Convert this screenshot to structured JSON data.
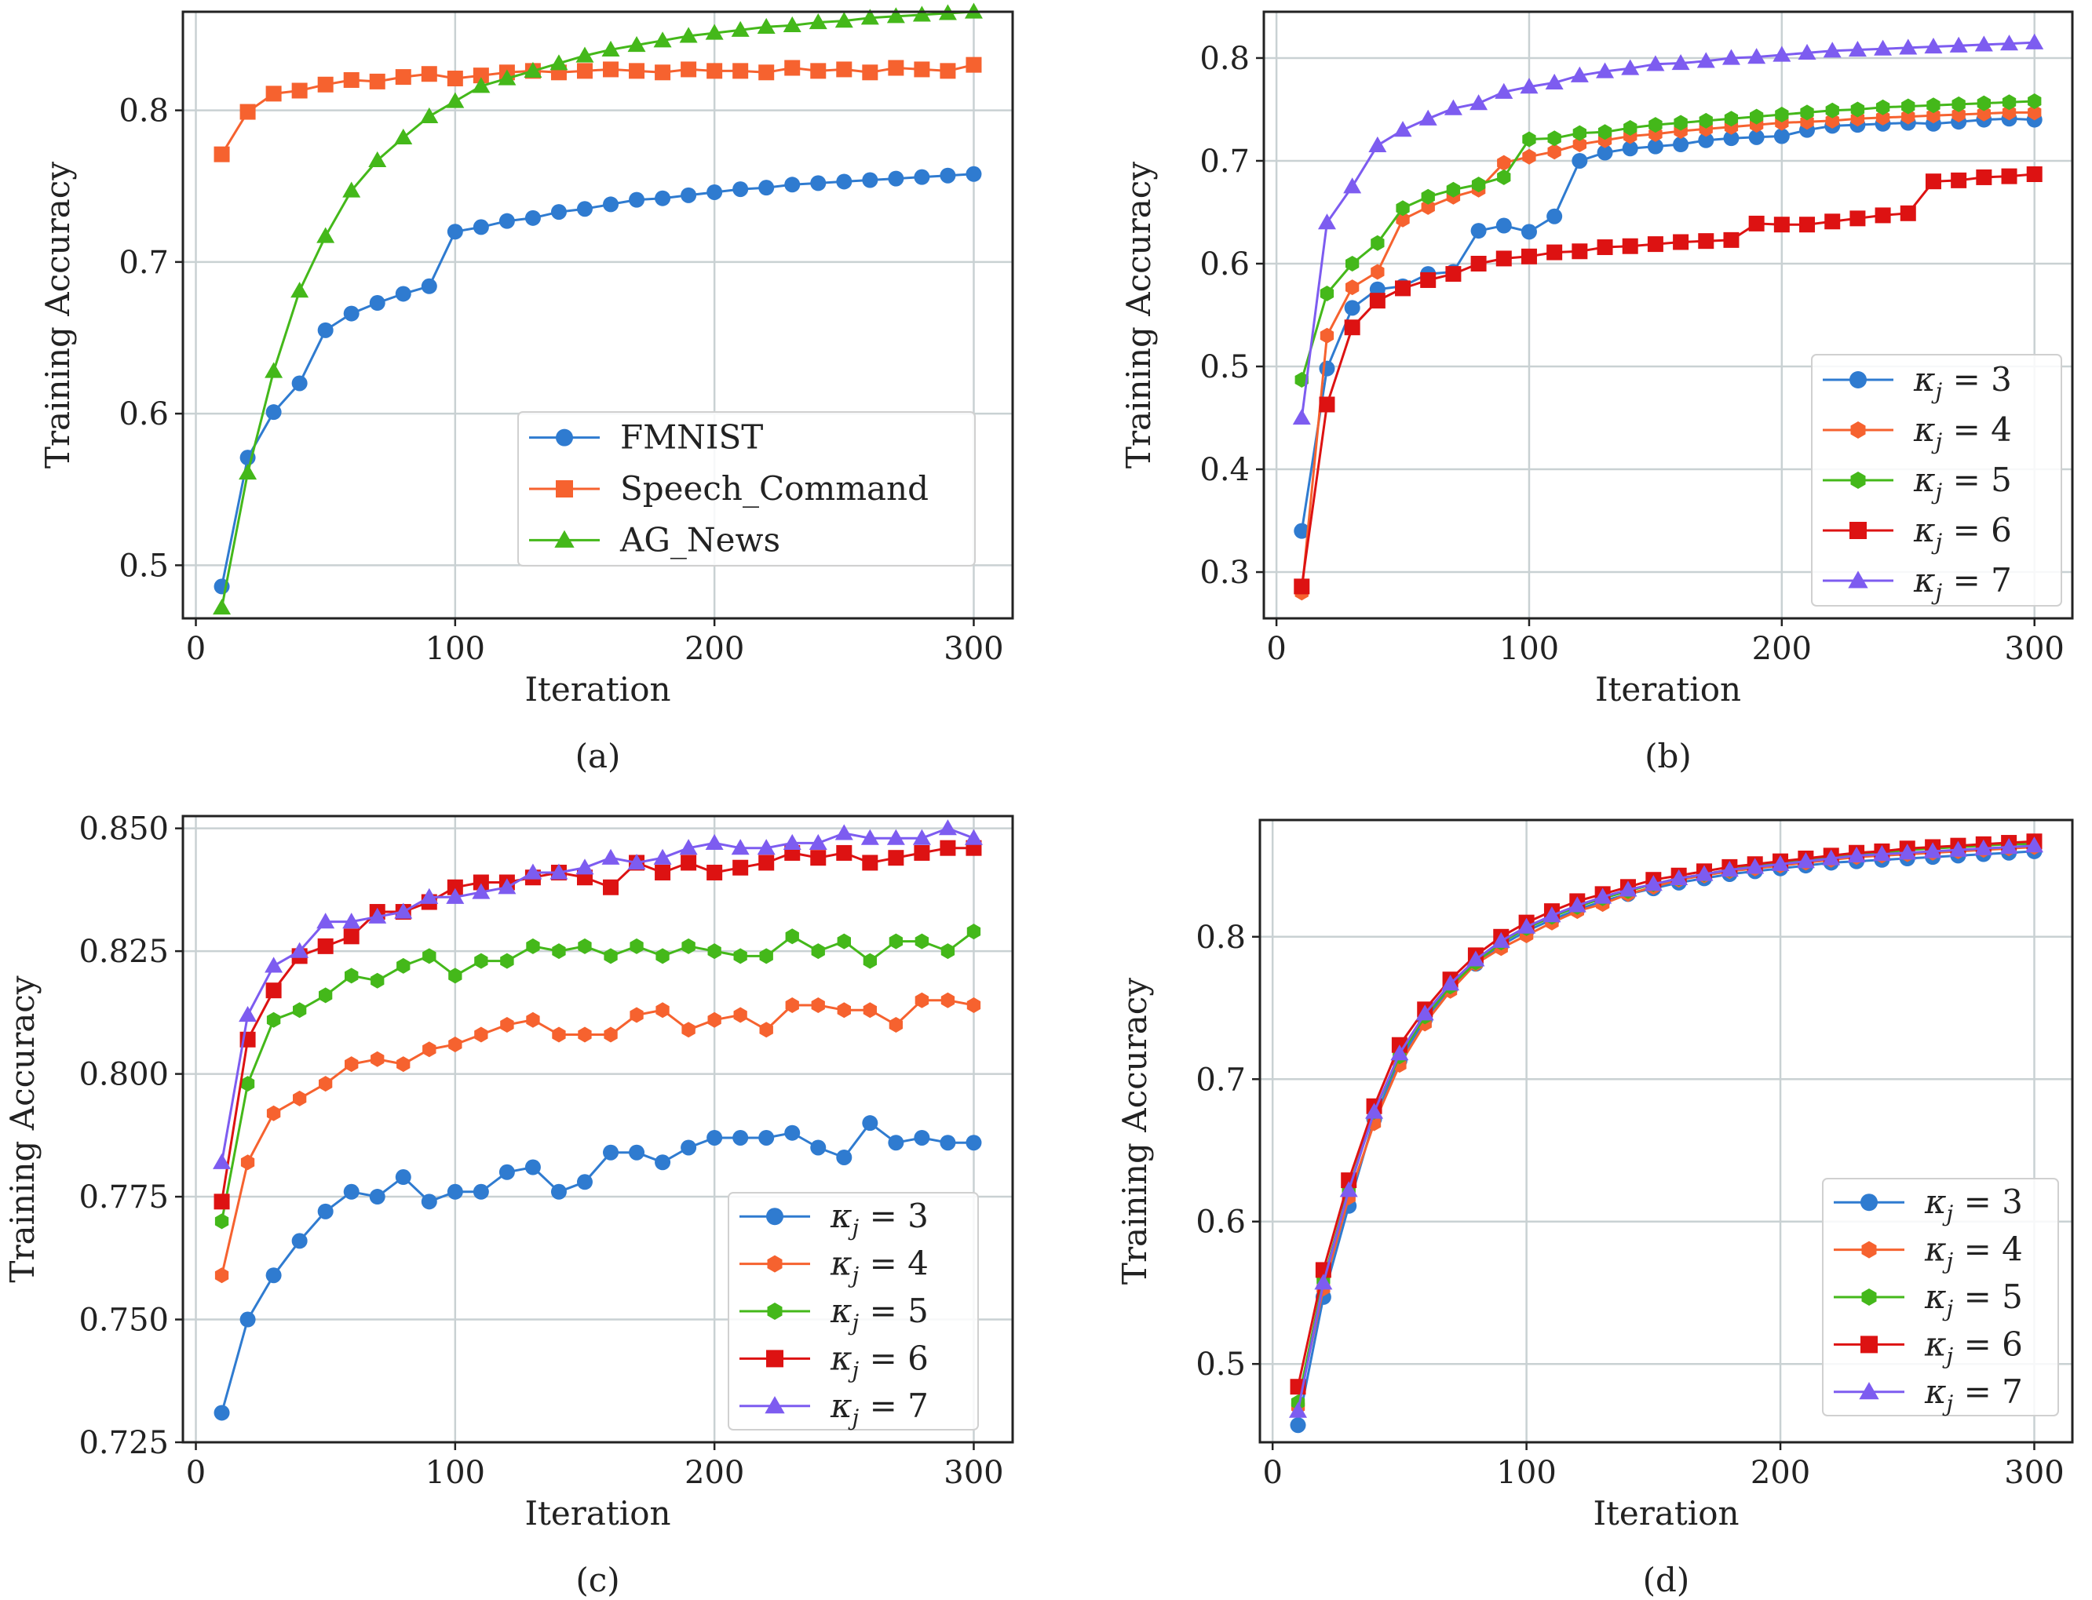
{
  "figure": {
    "colors": {
      "blue": "#2f7bd0",
      "orange": "#f6622f",
      "green": "#44b81a",
      "red": "#dd1212",
      "purple": "#7d5cf0"
    }
  },
  "chart_data": [
    {
      "id": "a",
      "type": "line",
      "caption": "(a)",
      "xlabel": "Iteration",
      "ylabel": "Training Accuracy",
      "xlim": [
        -5,
        315
      ],
      "ylim": [
        0.465,
        0.865
      ],
      "xticks": [
        0,
        100,
        200,
        300
      ],
      "yticks": [
        0.5,
        0.6,
        0.7,
        0.8
      ],
      "ytick_labels": [
        "0.5",
        "0.6",
        "0.7",
        "0.8"
      ],
      "grid": true,
      "legend_position": "lower-right",
      "x": [
        10,
        20,
        30,
        40,
        50,
        60,
        70,
        80,
        90,
        100,
        110,
        120,
        130,
        140,
        150,
        160,
        170,
        180,
        190,
        200,
        210,
        220,
        230,
        240,
        250,
        260,
        270,
        280,
        290,
        300
      ],
      "series": [
        {
          "name": "FMNIST",
          "color": "#2f7bd0",
          "marker": "circle",
          "values": [
            0.486,
            0.571,
            0.601,
            0.62,
            0.655,
            0.666,
            0.673,
            0.679,
            0.684,
            0.72,
            0.723,
            0.727,
            0.729,
            0.733,
            0.735,
            0.738,
            0.741,
            0.742,
            0.744,
            0.746,
            0.748,
            0.749,
            0.751,
            0.752,
            0.753,
            0.754,
            0.755,
            0.756,
            0.757,
            0.758
          ]
        },
        {
          "name": "Speech_Command",
          "color": "#f6622f",
          "marker": "square",
          "values": [
            0.771,
            0.799,
            0.811,
            0.813,
            0.817,
            0.82,
            0.819,
            0.822,
            0.824,
            0.821,
            0.823,
            0.825,
            0.826,
            0.825,
            0.826,
            0.827,
            0.826,
            0.825,
            0.827,
            0.826,
            0.826,
            0.825,
            0.828,
            0.826,
            0.827,
            0.825,
            0.828,
            0.827,
            0.826,
            0.83
          ]
        },
        {
          "name": "AG_News",
          "color": "#44b81a",
          "marker": "triangle",
          "values": [
            0.472,
            0.561,
            0.628,
            0.681,
            0.717,
            0.747,
            0.767,
            0.782,
            0.796,
            0.806,
            0.816,
            0.821,
            0.826,
            0.831,
            0.836,
            0.84,
            0.843,
            0.846,
            0.849,
            0.851,
            0.853,
            0.855,
            0.856,
            0.858,
            0.859,
            0.861,
            0.862,
            0.863,
            0.864,
            0.865
          ]
        }
      ]
    },
    {
      "id": "b",
      "type": "line",
      "caption": "(b)",
      "xlabel": "Iteration",
      "ylabel": "Training Accuracy",
      "xlim": [
        -5,
        315
      ],
      "ylim": [
        0.255,
        0.845
      ],
      "xticks": [
        0,
        100,
        200,
        300
      ],
      "yticks": [
        0.3,
        0.4,
        0.5,
        0.6,
        0.7,
        0.8
      ],
      "ytick_labels": [
        "0.3",
        "0.4",
        "0.5",
        "0.6",
        "0.7",
        "0.8"
      ],
      "grid": true,
      "legend_position": "lower-right",
      "x": [
        10,
        20,
        30,
        40,
        50,
        60,
        70,
        80,
        90,
        100,
        110,
        120,
        130,
        140,
        150,
        160,
        170,
        180,
        190,
        200,
        210,
        220,
        230,
        240,
        250,
        260,
        270,
        280,
        290,
        300
      ],
      "series": [
        {
          "name": "κj = 3",
          "legend_kappa": "κ",
          "legend_sub": "j",
          "legend_rest": " = 3",
          "color": "#2f7bd0",
          "marker": "circle",
          "values": [
            0.34,
            0.498,
            0.557,
            0.575,
            0.578,
            0.59,
            0.592,
            0.632,
            0.637,
            0.631,
            0.646,
            0.7,
            0.708,
            0.712,
            0.714,
            0.716,
            0.72,
            0.722,
            0.723,
            0.724,
            0.73,
            0.734,
            0.735,
            0.736,
            0.737,
            0.736,
            0.738,
            0.74,
            0.741,
            0.74
          ]
        },
        {
          "name": "κj = 4",
          "legend_kappa": "κ",
          "legend_sub": "j",
          "legend_rest": " = 4",
          "color": "#f6622f",
          "marker": "hexagon",
          "values": [
            0.28,
            0.53,
            0.577,
            0.592,
            0.643,
            0.655,
            0.665,
            0.672,
            0.698,
            0.704,
            0.709,
            0.716,
            0.72,
            0.724,
            0.726,
            0.729,
            0.731,
            0.733,
            0.735,
            0.737,
            0.738,
            0.739,
            0.741,
            0.742,
            0.743,
            0.744,
            0.745,
            0.746,
            0.747,
            0.747
          ]
        },
        {
          "name": "κj = 5",
          "legend_kappa": "κ",
          "legend_sub": "j",
          "legend_rest": " = 5",
          "color": "#44b81a",
          "marker": "hexagon",
          "values": [
            0.487,
            0.571,
            0.6,
            0.62,
            0.654,
            0.665,
            0.672,
            0.677,
            0.684,
            0.721,
            0.722,
            0.727,
            0.728,
            0.732,
            0.735,
            0.737,
            0.739,
            0.741,
            0.743,
            0.745,
            0.747,
            0.749,
            0.75,
            0.752,
            0.753,
            0.754,
            0.755,
            0.756,
            0.757,
            0.758
          ]
        },
        {
          "name": "κj = 6",
          "legend_kappa": "κ",
          "legend_sub": "j",
          "legend_rest": " = 6",
          "color": "#dd1212",
          "marker": "square",
          "values": [
            0.286,
            0.463,
            0.538,
            0.564,
            0.576,
            0.584,
            0.59,
            0.6,
            0.605,
            0.607,
            0.611,
            0.612,
            0.616,
            0.617,
            0.619,
            0.621,
            0.622,
            0.623,
            0.639,
            0.638,
            0.638,
            0.641,
            0.644,
            0.647,
            0.649,
            0.68,
            0.681,
            0.684,
            0.685,
            0.687
          ]
        },
        {
          "name": "κj = 7",
          "legend_kappa": "κ",
          "legend_sub": "j",
          "legend_rest": " = 7",
          "color": "#7d5cf0",
          "marker": "triangle",
          "values": [
            0.45,
            0.64,
            0.675,
            0.715,
            0.73,
            0.741,
            0.751,
            0.756,
            0.767,
            0.772,
            0.776,
            0.783,
            0.787,
            0.79,
            0.794,
            0.795,
            0.797,
            0.8,
            0.801,
            0.803,
            0.805,
            0.807,
            0.808,
            0.809,
            0.81,
            0.811,
            0.812,
            0.813,
            0.814,
            0.815
          ]
        }
      ]
    },
    {
      "id": "c",
      "type": "line",
      "caption": "(c)",
      "xlabel": "Iteration",
      "ylabel": "Training Accuracy",
      "xlim": [
        -5,
        315
      ],
      "ylim": [
        0.725,
        0.8525
      ],
      "xticks": [
        0,
        100,
        200,
        300
      ],
      "yticks": [
        0.725,
        0.75,
        0.775,
        0.8,
        0.825,
        0.85
      ],
      "ytick_labels": [
        "0.725",
        "0.750",
        "0.775",
        "0.800",
        "0.825",
        "0.850"
      ],
      "grid": true,
      "legend_position": "lower-right",
      "x": [
        10,
        20,
        30,
        40,
        50,
        60,
        70,
        80,
        90,
        100,
        110,
        120,
        130,
        140,
        150,
        160,
        170,
        180,
        190,
        200,
        210,
        220,
        230,
        240,
        250,
        260,
        270,
        280,
        290,
        300
      ],
      "series": [
        {
          "name": "κj = 3",
          "legend_kappa": "κ",
          "legend_sub": "j",
          "legend_rest": " = 3",
          "color": "#2f7bd0",
          "marker": "circle",
          "values": [
            0.731,
            0.75,
            0.759,
            0.766,
            0.772,
            0.776,
            0.775,
            0.779,
            0.774,
            0.776,
            0.776,
            0.78,
            0.781,
            0.776,
            0.778,
            0.784,
            0.784,
            0.782,
            0.785,
            0.787,
            0.787,
            0.787,
            0.788,
            0.785,
            0.783,
            0.79,
            0.786,
            0.787,
            0.786,
            0.786
          ]
        },
        {
          "name": "κj = 4",
          "legend_kappa": "κ",
          "legend_sub": "j",
          "legend_rest": " = 4",
          "color": "#f6622f",
          "marker": "hexagon",
          "values": [
            0.759,
            0.782,
            0.792,
            0.795,
            0.798,
            0.802,
            0.803,
            0.802,
            0.805,
            0.806,
            0.808,
            0.81,
            0.811,
            0.808,
            0.808,
            0.808,
            0.812,
            0.813,
            0.809,
            0.811,
            0.812,
            0.809,
            0.814,
            0.814,
            0.813,
            0.813,
            0.81,
            0.815,
            0.815,
            0.814
          ]
        },
        {
          "name": "κj = 5",
          "legend_kappa": "κ",
          "legend_sub": "j",
          "legend_rest": " = 5",
          "color": "#44b81a",
          "marker": "hexagon",
          "values": [
            0.77,
            0.798,
            0.811,
            0.813,
            0.816,
            0.82,
            0.819,
            0.822,
            0.824,
            0.82,
            0.823,
            0.823,
            0.826,
            0.825,
            0.826,
            0.824,
            0.826,
            0.824,
            0.826,
            0.825,
            0.824,
            0.824,
            0.828,
            0.825,
            0.827,
            0.823,
            0.827,
            0.827,
            0.825,
            0.829
          ]
        },
        {
          "name": "κj = 6",
          "legend_kappa": "κ",
          "legend_sub": "j",
          "legend_rest": " = 6",
          "color": "#dd1212",
          "marker": "square",
          "values": [
            0.774,
            0.807,
            0.817,
            0.824,
            0.826,
            0.828,
            0.833,
            0.833,
            0.835,
            0.838,
            0.839,
            0.839,
            0.84,
            0.841,
            0.84,
            0.838,
            0.843,
            0.841,
            0.843,
            0.841,
            0.842,
            0.843,
            0.845,
            0.844,
            0.845,
            0.843,
            0.844,
            0.845,
            0.846,
            0.846
          ]
        },
        {
          "name": "κj = 7",
          "legend_kappa": "κ",
          "legend_sub": "j",
          "legend_rest": " = 7",
          "color": "#7d5cf0",
          "marker": "triangle",
          "values": [
            0.782,
            0.812,
            0.822,
            0.825,
            0.831,
            0.831,
            0.832,
            0.833,
            0.836,
            0.836,
            0.837,
            0.838,
            0.841,
            0.841,
            0.842,
            0.844,
            0.843,
            0.844,
            0.846,
            0.847,
            0.846,
            0.846,
            0.847,
            0.847,
            0.849,
            0.848,
            0.848,
            0.848,
            0.85,
            0.848
          ]
        }
      ]
    },
    {
      "id": "d",
      "type": "line",
      "caption": "(d)",
      "xlabel": "Iteration",
      "ylabel": "Training Accuracy",
      "xlim": [
        -5,
        315
      ],
      "ylim": [
        0.445,
        0.882
      ],
      "xticks": [
        0,
        100,
        200,
        300
      ],
      "yticks": [
        0.5,
        0.6,
        0.7,
        0.8
      ],
      "ytick_labels": [
        "0.5",
        "0.6",
        "0.7",
        "0.8"
      ],
      "grid": true,
      "legend_position": "lower-right",
      "x": [
        10,
        20,
        30,
        40,
        50,
        60,
        70,
        80,
        90,
        100,
        110,
        120,
        130,
        140,
        150,
        160,
        170,
        180,
        190,
        200,
        210,
        220,
        230,
        240,
        250,
        260,
        270,
        280,
        290,
        300
      ],
      "series": [
        {
          "name": "κj = 3",
          "legend_kappa": "κ",
          "legend_sub": "j",
          "legend_rest": " = 3",
          "color": "#2f7bd0",
          "marker": "circle",
          "values": [
            0.457,
            0.547,
            0.611,
            0.672,
            0.713,
            0.742,
            0.764,
            0.781,
            0.794,
            0.804,
            0.812,
            0.819,
            0.825,
            0.83,
            0.834,
            0.838,
            0.841,
            0.844,
            0.846,
            0.848,
            0.85,
            0.852,
            0.853,
            0.854,
            0.855,
            0.856,
            0.857,
            0.858,
            0.859,
            0.86
          ]
        },
        {
          "name": "κj = 4",
          "legend_kappa": "κ",
          "legend_sub": "j",
          "legend_rest": " = 4",
          "color": "#f6622f",
          "marker": "hexagon",
          "values": [
            0.47,
            0.553,
            0.617,
            0.669,
            0.71,
            0.739,
            0.762,
            0.781,
            0.792,
            0.801,
            0.81,
            0.818,
            0.823,
            0.83,
            0.835,
            0.84,
            0.843,
            0.846,
            0.848,
            0.85,
            0.852,
            0.854,
            0.856,
            0.857,
            0.858,
            0.859,
            0.86,
            0.861,
            0.862,
            0.863
          ]
        },
        {
          "name": "κj = 5",
          "legend_kappa": "κ",
          "legend_sub": "j",
          "legend_rest": " = 5",
          "color": "#44b81a",
          "marker": "hexagon",
          "values": [
            0.473,
            0.559,
            0.623,
            0.677,
            0.716,
            0.744,
            0.765,
            0.782,
            0.796,
            0.806,
            0.814,
            0.821,
            0.827,
            0.832,
            0.837,
            0.841,
            0.844,
            0.847,
            0.85,
            0.852,
            0.854,
            0.856,
            0.858,
            0.859,
            0.861,
            0.862,
            0.863,
            0.864,
            0.865,
            0.865
          ]
        },
        {
          "name": "κj = 6",
          "legend_kappa": "κ",
          "legend_sub": "j",
          "legend_rest": " = 6",
          "color": "#dd1212",
          "marker": "square",
          "values": [
            0.484,
            0.566,
            0.629,
            0.681,
            0.724,
            0.749,
            0.77,
            0.787,
            0.8,
            0.81,
            0.818,
            0.825,
            0.83,
            0.835,
            0.84,
            0.843,
            0.846,
            0.849,
            0.851,
            0.853,
            0.855,
            0.857,
            0.859,
            0.86,
            0.862,
            0.863,
            0.864,
            0.865,
            0.866,
            0.867
          ]
        },
        {
          "name": "κj = 7",
          "legend_kappa": "κ",
          "legend_sub": "j",
          "legend_rest": " = 7",
          "color": "#7d5cf0",
          "marker": "triangle",
          "values": [
            0.467,
            0.557,
            0.622,
            0.677,
            0.718,
            0.746,
            0.767,
            0.784,
            0.797,
            0.807,
            0.815,
            0.822,
            0.828,
            0.833,
            0.837,
            0.841,
            0.844,
            0.847,
            0.849,
            0.851,
            0.853,
            0.855,
            0.857,
            0.858,
            0.859,
            0.86,
            0.861,
            0.862,
            0.863,
            0.864
          ]
        }
      ]
    }
  ]
}
